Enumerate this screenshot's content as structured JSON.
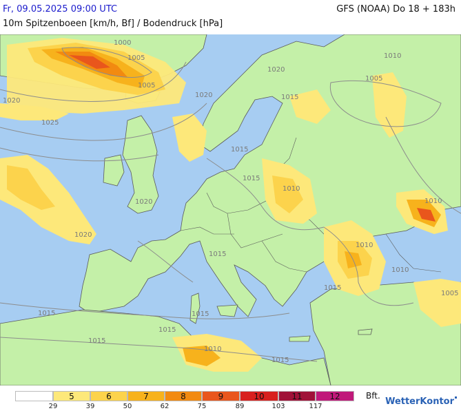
{
  "header": {
    "date": "Fr, 09.05.2025 09:00 UTC",
    "model": "GFS (NOAA) Do 18 + 183h",
    "subtitle": "10m Spitzenboeen [km/h, Bf] / Bodendruck [hPa]"
  },
  "colors": {
    "sea": "#a7cdf2",
    "land": "#c4f0a8",
    "border": "#5a5a5a",
    "isobar": "#8c8c8c"
  },
  "isobar_labels": [
    "1000",
    "1005",
    "1005",
    "1020",
    "1015",
    "1020",
    "1020",
    "1025",
    "1010",
    "1005",
    "1015",
    "1015",
    "1010",
    "1020",
    "1020",
    "1015",
    "1010",
    "1010",
    "1015",
    "1010",
    "1005",
    "1015",
    "1015",
    "1015",
    "1015",
    "1010",
    "1015"
  ],
  "legend": {
    "cells": [
      {
        "label": "",
        "color": "#ffffff"
      },
      {
        "label": "5",
        "color": "#fde87a"
      },
      {
        "label": "6",
        "color": "#fcd34c"
      },
      {
        "label": "7",
        "color": "#f7b21c"
      },
      {
        "label": "8",
        "color": "#f28a10"
      },
      {
        "label": "9",
        "color": "#e9561c"
      },
      {
        "label": "10",
        "color": "#d8201e"
      },
      {
        "label": "11",
        "color": "#a01238"
      },
      {
        "label": "12",
        "color": "#c0197a"
      }
    ],
    "ticks": [
      "29",
      "39",
      "50",
      "62",
      "75",
      "89",
      "103",
      "117"
    ],
    "unit": "Bft."
  },
  "logo": "WetterKontor"
}
